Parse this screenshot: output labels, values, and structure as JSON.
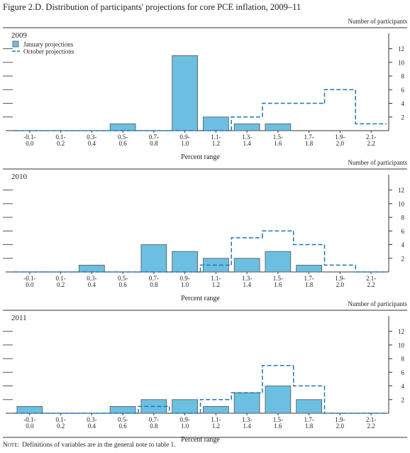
{
  "title": "Figure 2.D. Distribution of participants' projections for core PCE inflation, 2009–11",
  "note_label": "Note:",
  "note": "Definitions of variables are in the general note to table 1.",
  "chart_data": [
    {
      "type": "bar",
      "title": "2009",
      "ylabel": "Number of participants",
      "xlabel": "Percent range",
      "categories": [
        "-0.1-\n0.0",
        "0.1-\n0.2",
        "0.3-\n0.4",
        "0.5-\n0.6",
        "0.7-\n0.8",
        "0.9-\n1.0",
        "1.1-\n1.2",
        "1.3-\n1.4",
        "1.5-\n1.6",
        "1.7-\n1.8",
        "1.9-\n2.0",
        "2.1-\n2.2"
      ],
      "series": [
        {
          "name": "January projections",
          "color": "#6cbfe0",
          "style": "bar",
          "values": [
            0,
            0,
            0,
            1,
            0,
            11,
            2,
            1,
            1,
            0,
            0,
            0
          ]
        },
        {
          "name": "October projections",
          "color": "#1f77b8",
          "style": "dashed-step",
          "values": [
            0,
            0,
            0,
            0,
            0,
            0,
            0,
            2,
            4,
            4,
            6,
            1
          ]
        }
      ],
      "ylim": [
        0,
        13
      ],
      "yticks": [
        2,
        4,
        6,
        8,
        10,
        12
      ]
    },
    {
      "type": "bar",
      "title": "2010",
      "ylabel": "Number of participants",
      "xlabel": "Percent range",
      "categories": [
        "-0.1-\n0.0",
        "0.1-\n0.2",
        "0.3-\n0.4",
        "0.5-\n0.6",
        "0.7-\n0.8",
        "0.9-\n1.0",
        "1.1-\n1.2",
        "1.3-\n1.4",
        "1.5-\n1.6",
        "1.7-\n1.8",
        "1.9-\n2.0",
        "2.1-\n2.2"
      ],
      "series": [
        {
          "color": "#6cbfe0",
          "style": "bar",
          "values": [
            0,
            0,
            1,
            0,
            4,
            3,
            2,
            2,
            3,
            1,
            0,
            0
          ]
        },
        {
          "color": "#1f77b8",
          "style": "dashed-step",
          "values": [
            0,
            0,
            0,
            0,
            0,
            0,
            1,
            5,
            6,
            4,
            1,
            0
          ]
        }
      ],
      "ylim": [
        0,
        13
      ],
      "yticks": [
        2,
        4,
        6,
        8,
        10,
        12
      ]
    },
    {
      "type": "bar",
      "title": "2011",
      "ylabel": "Number of participants",
      "xlabel": "Percent range",
      "categories": [
        "-0.1-\n0.0",
        "0.1-\n0.2",
        "0.3-\n0.4",
        "0.5-\n0.6",
        "0.7-\n0.8",
        "0.9-\n1.0",
        "1.1-\n1.2",
        "1.3-\n1.4",
        "1.5-\n1.6",
        "1.7-\n1.8",
        "1.9-\n2.0",
        "2.1-\n2.2"
      ],
      "series": [
        {
          "color": "#6cbfe0",
          "style": "bar",
          "values": [
            1,
            0,
            0,
            1,
            2,
            2,
            1,
            3,
            4,
            2,
            0,
            0
          ]
        },
        {
          "color": "#1f77b8",
          "style": "dashed-step",
          "values": [
            0,
            0,
            0,
            0,
            1,
            0,
            2,
            3,
            7,
            4,
            0,
            0
          ]
        }
      ],
      "ylim": [
        0,
        13
      ],
      "yticks": [
        2,
        4,
        6,
        8,
        10,
        12
      ]
    }
  ]
}
